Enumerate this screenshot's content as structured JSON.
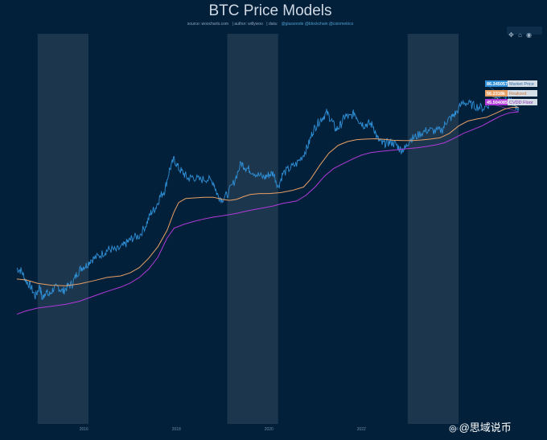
{
  "chart_data": {
    "type": "line",
    "title": "BTC Price Models",
    "subtitle": {
      "source_label": "source: woocharts.com",
      "author_label": "author: willywoo",
      "data_label": "data:",
      "data_sources": "@glassnode @blockchain @coinmetrics"
    },
    "x_axis": {
      "scale": "time",
      "range": [
        2014.5,
        2025.7
      ],
      "tick_labels": [
        "2016",
        "2018",
        "2020",
        "2022",
        "2024"
      ],
      "tick_values": [
        2016,
        2018,
        2020,
        2022,
        2024
      ]
    },
    "y_axis": {
      "scale": "log",
      "range": [
        0.9,
        13.5
      ]
    },
    "shaded_periods": [
      [
        2015.0,
        2016.1
      ],
      [
        2019.1,
        2020.2
      ],
      [
        2023.0,
        2024.1
      ]
    ],
    "series": [
      {
        "name": "Market Price",
        "color": "#2f8fd6",
        "label_value": "86.345057k",
        "points": [
          [
            2014.55,
            5.92
          ],
          [
            2014.65,
            5.84
          ],
          [
            2014.75,
            5.52
          ],
          [
            2014.85,
            5.34
          ],
          [
            2014.95,
            5.02
          ],
          [
            2015.05,
            5.36
          ],
          [
            2015.1,
            4.93
          ],
          [
            2015.17,
            5.18
          ],
          [
            2015.25,
            5.06
          ],
          [
            2015.35,
            5.28
          ],
          [
            2015.45,
            5.31
          ],
          [
            2015.55,
            5.18
          ],
          [
            2015.65,
            5.34
          ],
          [
            2015.75,
            5.42
          ],
          [
            2015.85,
            5.75
          ],
          [
            2015.95,
            5.95
          ],
          [
            2016.05,
            6.02
          ],
          [
            2016.15,
            6.2
          ],
          [
            2016.3,
            6.3
          ],
          [
            2016.45,
            6.45
          ],
          [
            2016.55,
            6.55
          ],
          [
            2016.7,
            6.5
          ],
          [
            2016.85,
            6.64
          ],
          [
            2016.95,
            6.78
          ],
          [
            2017.05,
            6.9
          ],
          [
            2017.2,
            6.98
          ],
          [
            2017.35,
            7.35
          ],
          [
            2017.45,
            7.72
          ],
          [
            2017.55,
            7.88
          ],
          [
            2017.65,
            8.25
          ],
          [
            2017.75,
            8.45
          ],
          [
            2017.85,
            9.1
          ],
          [
            2017.95,
            9.45
          ],
          [
            2018.05,
            9.15
          ],
          [
            2018.15,
            9.0
          ],
          [
            2018.25,
            8.82
          ],
          [
            2018.35,
            8.88
          ],
          [
            2018.5,
            8.78
          ],
          [
            2018.65,
            8.82
          ],
          [
            2018.8,
            8.72
          ],
          [
            2018.88,
            8.32
          ],
          [
            2018.98,
            8.15
          ],
          [
            2019.1,
            8.3
          ],
          [
            2019.25,
            8.72
          ],
          [
            2019.4,
            9.32
          ],
          [
            2019.5,
            9.18
          ],
          [
            2019.6,
            9.1
          ],
          [
            2019.75,
            8.95
          ],
          [
            2019.9,
            8.85
          ],
          [
            2020.0,
            8.95
          ],
          [
            2020.1,
            9.0
          ],
          [
            2020.2,
            8.55
          ],
          [
            2020.3,
            8.98
          ],
          [
            2020.45,
            9.15
          ],
          [
            2020.6,
            9.3
          ],
          [
            2020.75,
            9.6
          ],
          [
            2020.85,
            9.9
          ],
          [
            2020.95,
            10.35
          ],
          [
            2021.05,
            10.6
          ],
          [
            2021.15,
            10.78
          ],
          [
            2021.25,
            10.95
          ],
          [
            2021.35,
            10.72
          ],
          [
            2021.45,
            10.4
          ],
          [
            2021.55,
            10.55
          ],
          [
            2021.65,
            10.85
          ],
          [
            2021.75,
            10.8
          ],
          [
            2021.85,
            10.95
          ],
          [
            2021.95,
            10.7
          ],
          [
            2022.05,
            10.55
          ],
          [
            2022.15,
            10.6
          ],
          [
            2022.25,
            10.55
          ],
          [
            2022.35,
            10.1
          ],
          [
            2022.45,
            9.95
          ],
          [
            2022.55,
            9.98
          ],
          [
            2022.65,
            10.0
          ],
          [
            2022.75,
            9.92
          ],
          [
            2022.85,
            9.75
          ],
          [
            2022.95,
            9.8
          ],
          [
            2023.05,
            10.1
          ],
          [
            2023.15,
            10.15
          ],
          [
            2023.3,
            10.3
          ],
          [
            2023.45,
            10.4
          ],
          [
            2023.6,
            10.35
          ],
          [
            2023.75,
            10.4
          ],
          [
            2023.85,
            10.7
          ],
          [
            2023.95,
            10.8
          ],
          [
            2024.05,
            10.95
          ],
          [
            2024.2,
            11.3
          ],
          [
            2024.35,
            11.22
          ],
          [
            2024.5,
            11.15
          ],
          [
            2024.65,
            11.1
          ],
          [
            2024.8,
            11.28
          ],
          [
            2024.92,
            11.55
          ],
          [
            2025.0,
            11.5
          ],
          [
            2025.1,
            11.58
          ],
          [
            2025.2,
            11.4
          ],
          [
            2025.3,
            11.22
          ],
          [
            2025.4,
            11.1
          ]
        ]
      },
      {
        "name": "Realized",
        "color": "#e8a064",
        "label_value": "56.2318k",
        "points": [
          [
            2014.55,
            5.58
          ],
          [
            2014.75,
            5.55
          ],
          [
            2015.0,
            5.44
          ],
          [
            2015.3,
            5.38
          ],
          [
            2015.6,
            5.36
          ],
          [
            2015.9,
            5.42
          ],
          [
            2016.2,
            5.52
          ],
          [
            2016.5,
            5.63
          ],
          [
            2016.8,
            5.68
          ],
          [
            2017.0,
            5.78
          ],
          [
            2017.2,
            5.95
          ],
          [
            2017.4,
            6.25
          ],
          [
            2017.6,
            6.62
          ],
          [
            2017.8,
            7.15
          ],
          [
            2017.95,
            7.75
          ],
          [
            2018.05,
            8.05
          ],
          [
            2018.2,
            8.18
          ],
          [
            2018.4,
            8.2
          ],
          [
            2018.6,
            8.22
          ],
          [
            2018.8,
            8.22
          ],
          [
            2019.0,
            8.15
          ],
          [
            2019.15,
            8.12
          ],
          [
            2019.3,
            8.15
          ],
          [
            2019.45,
            8.24
          ],
          [
            2019.6,
            8.31
          ],
          [
            2019.8,
            8.34
          ],
          [
            2020.0,
            8.34
          ],
          [
            2020.25,
            8.37
          ],
          [
            2020.5,
            8.44
          ],
          [
            2020.75,
            8.55
          ],
          [
            2020.9,
            8.8
          ],
          [
            2021.1,
            9.25
          ],
          [
            2021.3,
            9.65
          ],
          [
            2021.5,
            9.9
          ],
          [
            2021.7,
            10.02
          ],
          [
            2021.9,
            10.08
          ],
          [
            2022.1,
            10.1
          ],
          [
            2022.3,
            10.11
          ],
          [
            2022.5,
            10.09
          ],
          [
            2022.7,
            10.06
          ],
          [
            2022.9,
            10.05
          ],
          [
            2023.1,
            10.05
          ],
          [
            2023.3,
            10.07
          ],
          [
            2023.5,
            10.1
          ],
          [
            2023.7,
            10.14
          ],
          [
            2023.9,
            10.28
          ],
          [
            2024.1,
            10.52
          ],
          [
            2024.3,
            10.68
          ],
          [
            2024.5,
            10.75
          ],
          [
            2024.7,
            10.8
          ],
          [
            2024.9,
            10.93
          ],
          [
            2025.1,
            11.07
          ],
          [
            2025.25,
            11.12
          ],
          [
            2025.4,
            11.12
          ]
        ]
      },
      {
        "name": "CVDD Floor",
        "color": "#b03ad8",
        "label_value": "45.504085k",
        "points": [
          [
            2014.55,
            4.44
          ],
          [
            2014.75,
            4.55
          ],
          [
            2015.0,
            4.64
          ],
          [
            2015.3,
            4.7
          ],
          [
            2015.6,
            4.76
          ],
          [
            2015.9,
            4.86
          ],
          [
            2016.2,
            5.02
          ],
          [
            2016.5,
            5.18
          ],
          [
            2016.8,
            5.32
          ],
          [
            2017.0,
            5.45
          ],
          [
            2017.2,
            5.63
          ],
          [
            2017.4,
            5.9
          ],
          [
            2017.6,
            6.28
          ],
          [
            2017.8,
            6.9
          ],
          [
            2017.95,
            7.22
          ],
          [
            2018.15,
            7.34
          ],
          [
            2018.4,
            7.45
          ],
          [
            2018.6,
            7.52
          ],
          [
            2018.8,
            7.58
          ],
          [
            2019.0,
            7.62
          ],
          [
            2019.3,
            7.7
          ],
          [
            2019.6,
            7.8
          ],
          [
            2019.9,
            7.88
          ],
          [
            2020.1,
            7.94
          ],
          [
            2020.3,
            8.02
          ],
          [
            2020.6,
            8.1
          ],
          [
            2020.8,
            8.28
          ],
          [
            2021.0,
            8.55
          ],
          [
            2021.2,
            8.9
          ],
          [
            2021.4,
            9.15
          ],
          [
            2021.6,
            9.3
          ],
          [
            2021.8,
            9.45
          ],
          [
            2022.0,
            9.58
          ],
          [
            2022.2,
            9.66
          ],
          [
            2022.4,
            9.7
          ],
          [
            2022.6,
            9.73
          ],
          [
            2022.8,
            9.76
          ],
          [
            2023.0,
            9.79
          ],
          [
            2023.2,
            9.82
          ],
          [
            2023.4,
            9.86
          ],
          [
            2023.6,
            9.91
          ],
          [
            2023.8,
            9.98
          ],
          [
            2024.0,
            10.12
          ],
          [
            2024.2,
            10.28
          ],
          [
            2024.4,
            10.4
          ],
          [
            2024.6,
            10.52
          ],
          [
            2024.8,
            10.68
          ],
          [
            2025.0,
            10.84
          ],
          [
            2025.2,
            10.95
          ],
          [
            2025.4,
            10.98
          ]
        ]
      }
    ]
  },
  "watermark": {
    "icon": "weibo-icon",
    "text": "@思域说币"
  },
  "modebar": {
    "icons": [
      "pan-icon",
      "home-icon",
      "camera-icon"
    ]
  }
}
